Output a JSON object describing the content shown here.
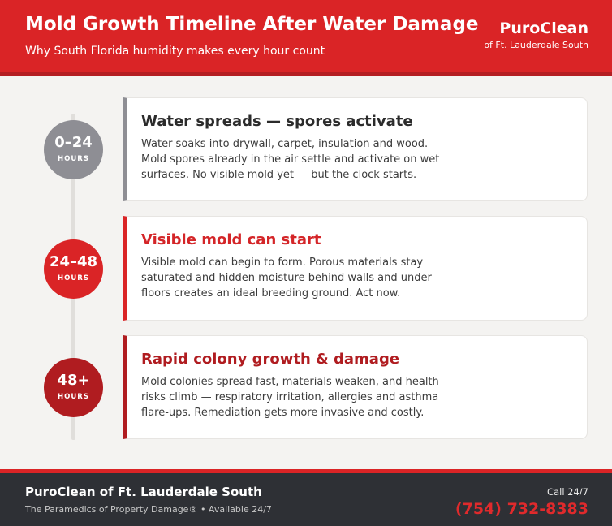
{
  "header": {
    "title": "Mold Growth Timeline After Water Damage",
    "subtitle": "Why South Florida humidity makes every hour count",
    "brand": "PuroClean",
    "brand_sub": "of Ft. Lauderdale South"
  },
  "stages": [
    {
      "range": "0–24",
      "unit": "HOURS",
      "title": "Water spreads — spores activate",
      "body": "Water soaks into drywall, carpet, insulation and wood. Mold spores already in the air settle and activate on wet surfaces. No visible mold yet — but the clock starts.",
      "circle_color": "#8e8e94",
      "accent_color": "#8e8e94",
      "title_color": "#2b2b2b"
    },
    {
      "range": "24–48",
      "unit": "HOURS",
      "title": "Visible mold can start",
      "body": "Visible mold can begin to form. Porous materials stay saturated and hidden moisture behind walls and under floors creates an ideal breeding ground. Act now.",
      "circle_color": "#da2426",
      "accent_color": "#da2426",
      "title_color": "#d42528"
    },
    {
      "range": "48+",
      "unit": "HOURS",
      "title": "Rapid colony growth & damage",
      "body": "Mold colonies spread fast, materials weaken, and health risks climb — respiratory irritation, allergies and asthma flare-ups. Remediation gets more invasive and costly.",
      "circle_color": "#b01c20",
      "accent_color": "#b01c20",
      "title_color": "#b01c20"
    }
  ],
  "footer": {
    "company": "PuroClean of Ft. Lauderdale South",
    "tagline": "The Paramedics of Property Damage® • Available 24/7",
    "call_label": "Call 24/7",
    "phone": "(754) 732-8383"
  }
}
